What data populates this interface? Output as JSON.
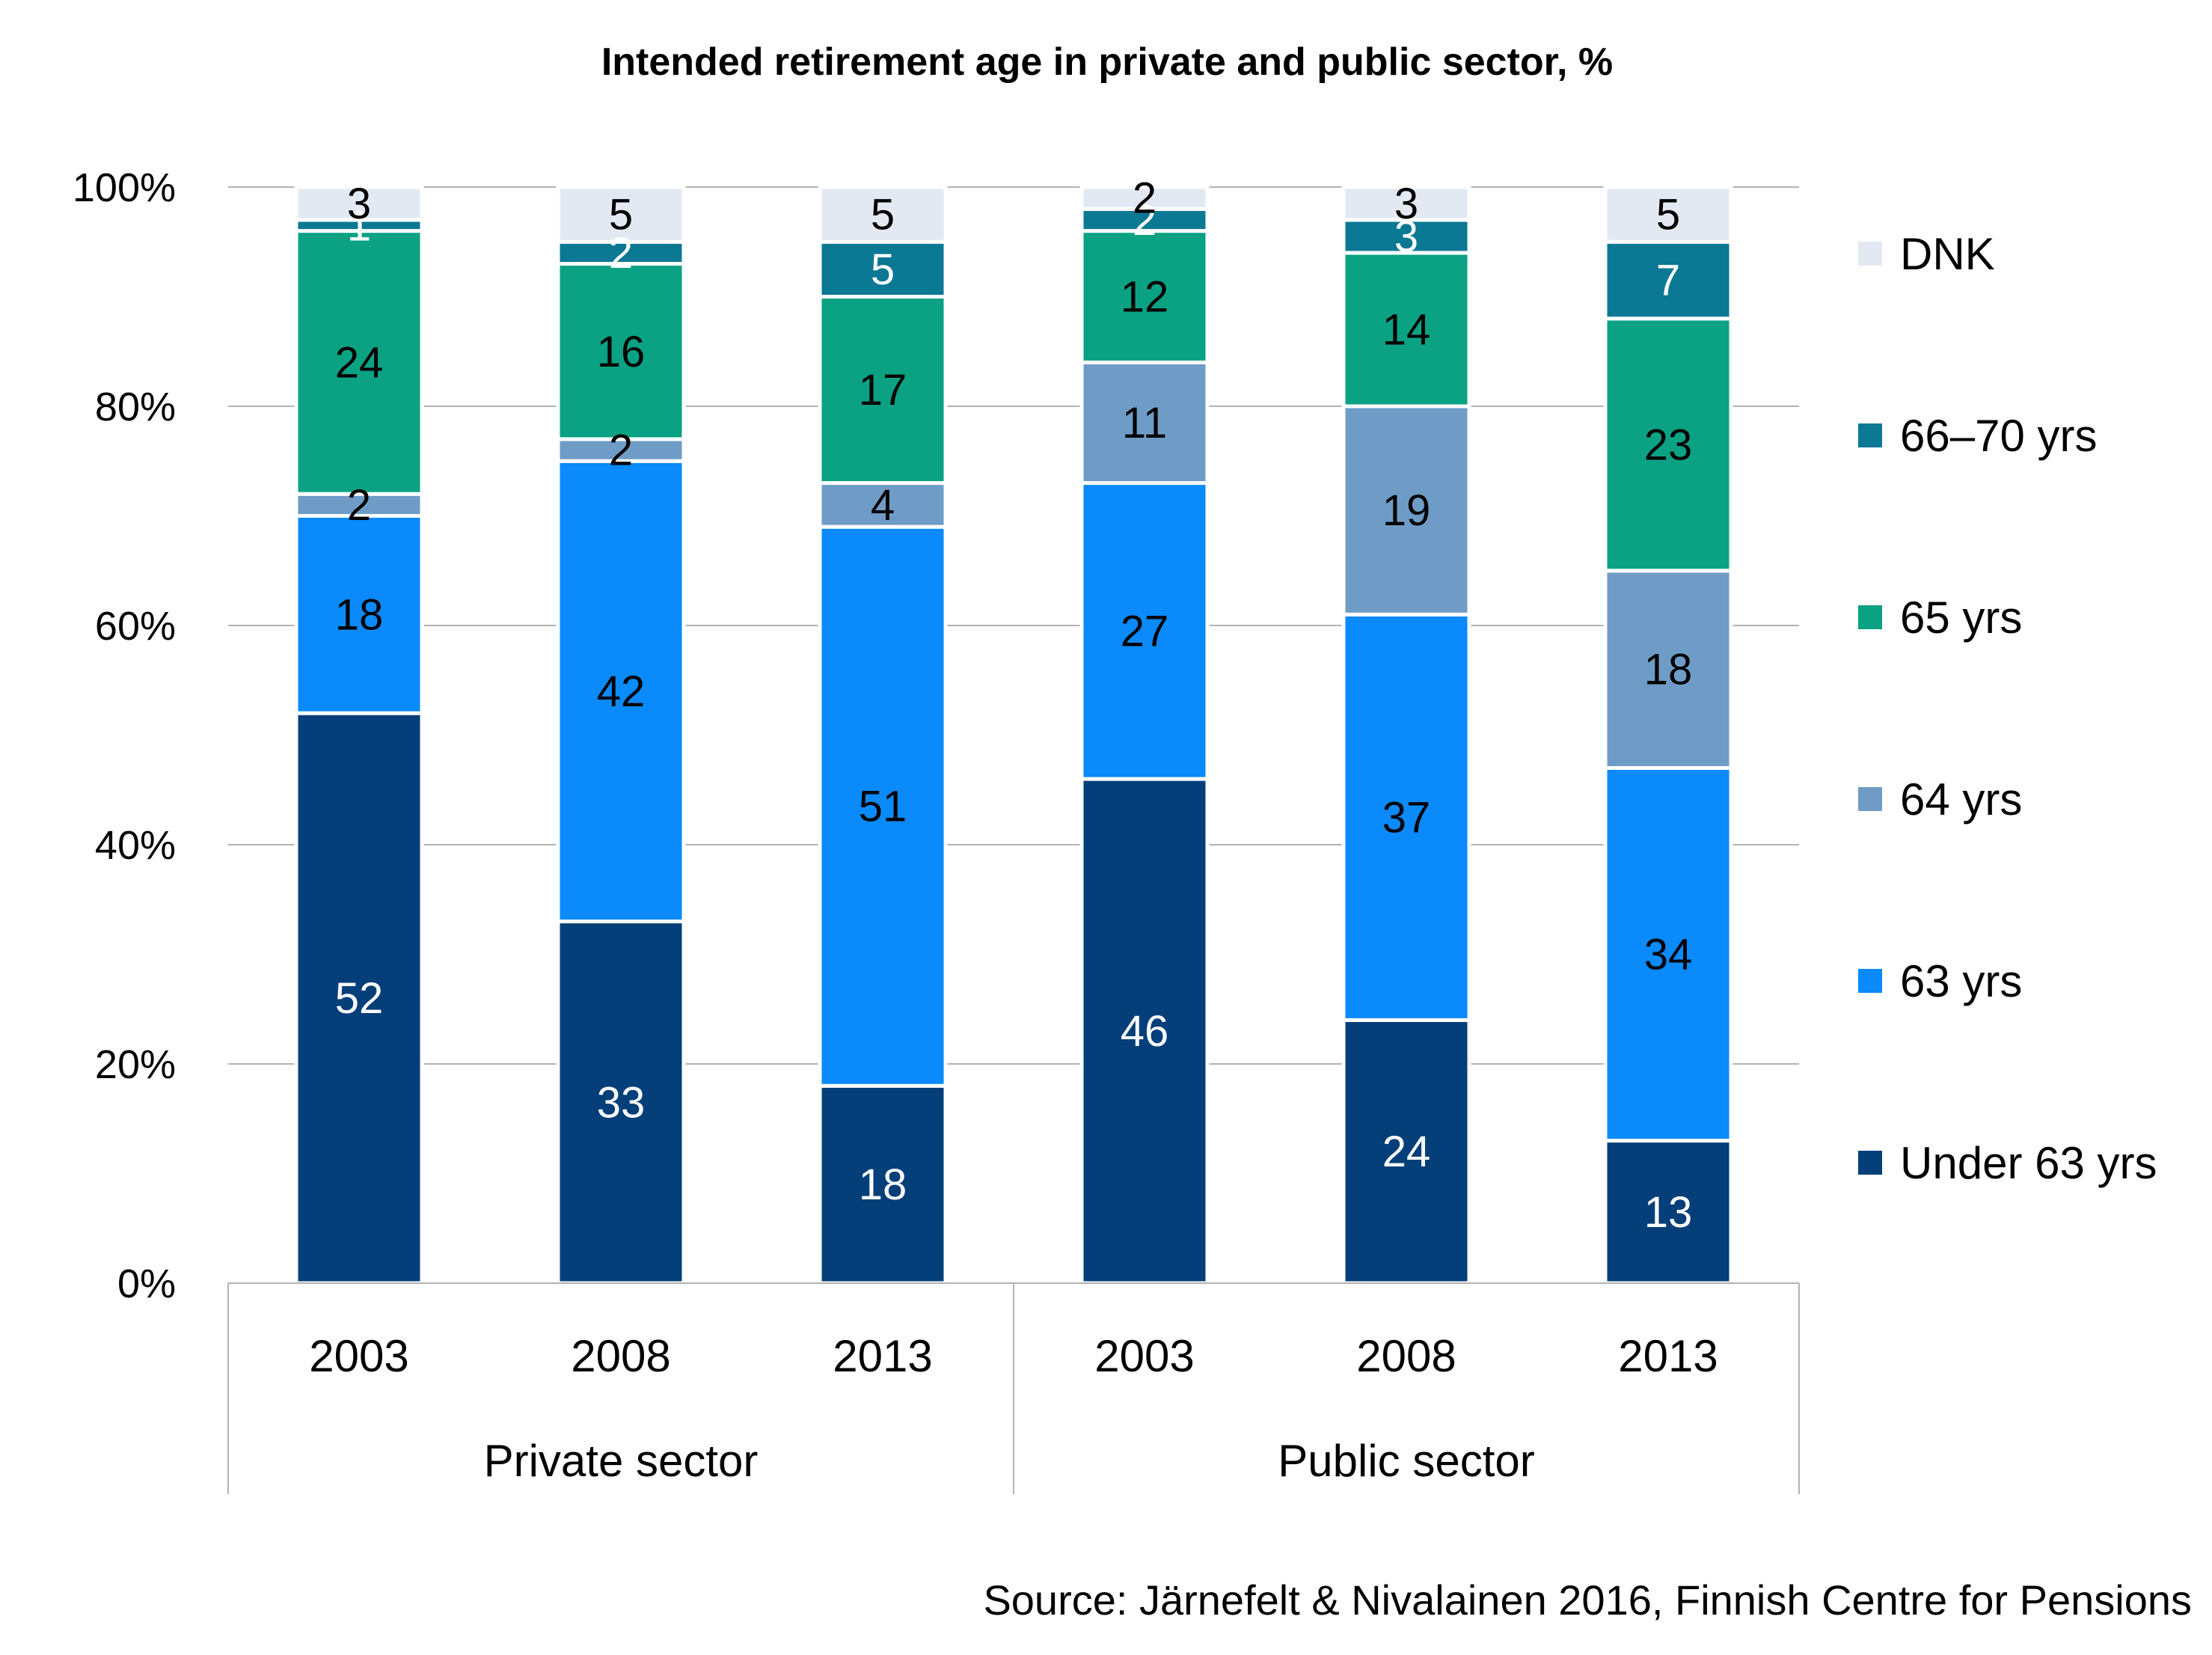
{
  "chart_data": {
    "type": "bar",
    "stacked": true,
    "title": "Intended retirement age in private and public sector, %",
    "categories": [
      "2003",
      "2008",
      "2013",
      "2003",
      "2008",
      "2013"
    ],
    "groups": [
      {
        "label": "Private sector",
        "categories": [
          "2003",
          "2008",
          "2013"
        ]
      },
      {
        "label": "Public sector",
        "categories": [
          "2003",
          "2008",
          "2013"
        ]
      }
    ],
    "series": [
      {
        "name": "Under 63 yrs",
        "color": "#053f7a",
        "label_color": "#ffffff",
        "values": [
          52,
          33,
          18,
          46,
          24,
          13
        ]
      },
      {
        "name": "63 yrs",
        "color": "#0a8afb",
        "label_color": "#000000",
        "values": [
          18,
          42,
          51,
          27,
          37,
          34
        ]
      },
      {
        "name": "64 yrs",
        "color": "#6f9cc6",
        "label_color": "#000000",
        "values": [
          2,
          2,
          4,
          11,
          19,
          18
        ]
      },
      {
        "name": "65 yrs",
        "color": "#0aa283",
        "label_color": "#000000",
        "values": [
          24,
          16,
          17,
          12,
          14,
          23
        ]
      },
      {
        "name": "66–70 yrs",
        "color": "#0b7894",
        "label_color": "#ffffff",
        "values": [
          1,
          2,
          5,
          2,
          3,
          7
        ]
      },
      {
        "name": "DNK",
        "color": "#e3e9f2",
        "label_color": "#000000",
        "values": [
          3,
          5,
          5,
          2,
          3,
          5
        ]
      }
    ],
    "y_ticks": [
      "0%",
      "20%",
      "40%",
      "60%",
      "80%",
      "100%"
    ],
    "ylim": [
      0,
      100
    ],
    "grid": true,
    "legend_position": "right"
  },
  "source": "Source: Järnefelt & Nivalainen 2016, Finnish Centre for Pensions"
}
